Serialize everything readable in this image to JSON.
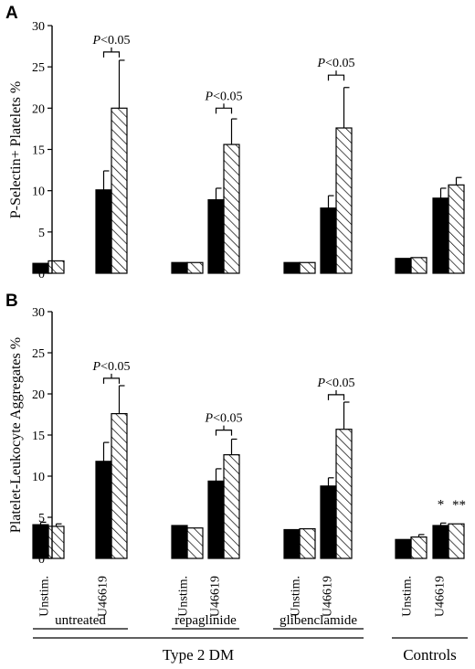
{
  "chart_data": [
    {
      "panel_label": "A",
      "type": "bar",
      "ylabel": "P-Selectin+ Platelets %",
      "ylim": [
        0,
        30
      ],
      "yticks": [
        0,
        5,
        10,
        15,
        20,
        25,
        30
      ],
      "series": [
        {
          "name": "",
          "pattern": "solid-black",
          "values": [
            1.2,
            10.1,
            1.3,
            8.9,
            1.3,
            7.9,
            1.8,
            9.1
          ],
          "error": [
            0,
            2.3,
            0,
            1.4,
            0,
            1.5,
            0,
            1.2
          ]
        },
        {
          "name": "",
          "pattern": "hatched",
          "values": [
            1.5,
            20.0,
            1.3,
            15.6,
            1.3,
            17.6,
            1.9,
            10.7
          ],
          "error": [
            0,
            5.8,
            0,
            3.1,
            0,
            4.9,
            0,
            0.9
          ]
        }
      ],
      "annotations": [
        {
          "text": "P<0.05",
          "group": 1,
          "ybar": 26.8
        },
        {
          "text": "P<0.05",
          "group": 3,
          "ybar": 20.0
        },
        {
          "text": "P<0.05",
          "group": 5,
          "ybar": 24.0
        }
      ]
    },
    {
      "panel_label": "B",
      "type": "bar",
      "ylabel": "Platelet-Leukocyte Aggregates %",
      "ylim": [
        0,
        30
      ],
      "yticks": [
        0,
        5,
        10,
        15,
        20,
        25,
        30
      ],
      "series": [
        {
          "name": "",
          "pattern": "solid-black",
          "values": [
            4.1,
            11.8,
            4.0,
            9.4,
            3.5,
            8.8,
            2.3,
            4.0
          ],
          "error": [
            0.3,
            2.3,
            0,
            1.5,
            0,
            1.0,
            0,
            0.3
          ]
        },
        {
          "name": "",
          "pattern": "hatched",
          "values": [
            3.9,
            17.6,
            3.7,
            12.6,
            3.6,
            15.7,
            2.6,
            4.2
          ],
          "error": [
            0.3,
            3.4,
            0,
            1.9,
            0,
            3.3,
            0.3,
            0
          ]
        }
      ],
      "annotations": [
        {
          "text": "P<0.05",
          "group": 1,
          "ybar": 21.9
        },
        {
          "text": "P<0.05",
          "group": 3,
          "ybar": 15.6
        },
        {
          "text": "P<0.05",
          "group": 5,
          "ybar": 19.9
        }
      ],
      "stars": [
        {
          "text": "*",
          "group": 7,
          "series": 0
        },
        {
          "text": "**",
          "group": 7,
          "series": 1
        }
      ]
    }
  ],
  "x_axis": {
    "stim_labels": [
      "Unstim.",
      "U46619",
      "Unstim.",
      "U46619",
      "Unstim.",
      "U46619",
      "Unstim.",
      "U46619"
    ],
    "treatments": [
      "untreated",
      "repaglinide",
      "glibenclamide"
    ],
    "super_groups": [
      "Type 2 DM",
      "Controls"
    ]
  }
}
